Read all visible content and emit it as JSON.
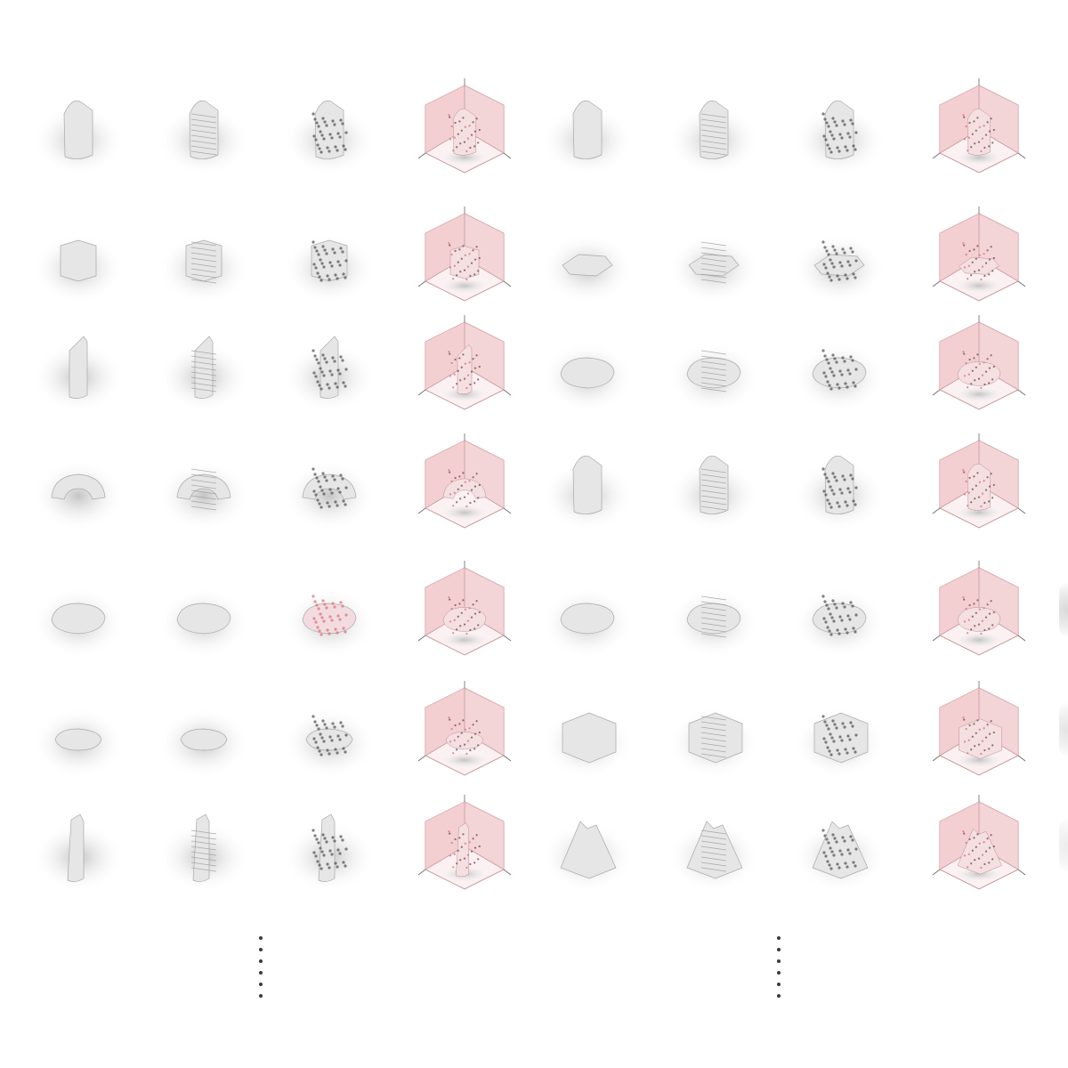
{
  "grid": {
    "rows": [
      [
        "tower-sculpted",
        "tower-ridged",
        "tower-perforated",
        "cube-frame-tower",
        "tower-sculpted",
        "tower-ridged",
        "tower-perforated",
        "cube-frame-tower"
      ],
      [
        "block-cluster",
        "block-ridged",
        "block-perforated",
        "cube-frame-block",
        "flat-block",
        "flat-ridged",
        "flat-perforated",
        "cube-frame-flat"
      ],
      [
        "slanted-tower",
        "slanted-ridged",
        "slanted-perforated",
        "cube-frame-slanted",
        "pebble-low",
        "pebble-ridged",
        "pebble-perforated",
        "cube-frame-pebble"
      ],
      [
        "arch-ring",
        "arch-ridged",
        "arch-perforated",
        "cube-frame-arch",
        "column-stack",
        "column-ridged",
        "column-perforated",
        "cube-frame-column"
      ],
      [
        "pebble-smooth",
        "pebble-soft",
        "pebble-pink-perforated",
        "cube-frame-pebble-pink",
        "rock-low",
        "rock-ridged",
        "rock-perforated",
        "cube-frame-rock"
      ],
      [
        "disc-smooth",
        "disc-soft",
        "disc-perforated",
        "cube-frame-disc",
        "cube-solid",
        "cube-ridged",
        "cube-perforated",
        "cube-frame-cube"
      ],
      [
        "spire-smooth",
        "spire-ridged",
        "spire-perforated",
        "cube-frame-spire",
        "pyramid-solid",
        "pyramid-ridged",
        "pyramid-perforated",
        "cube-frame-pyramid"
      ]
    ],
    "continuation_markers": [
      "vertical-ellipsis",
      "vertical-ellipsis"
    ],
    "colors": {
      "background": "#ffffff",
      "form": "#e6e6e6",
      "shadow": "#bdbdbd",
      "frame_fill": "#f1c9cc",
      "frame_edge": "#c9969b",
      "perforation": "#7a5057",
      "pink_accent": "#d9747f"
    }
  }
}
